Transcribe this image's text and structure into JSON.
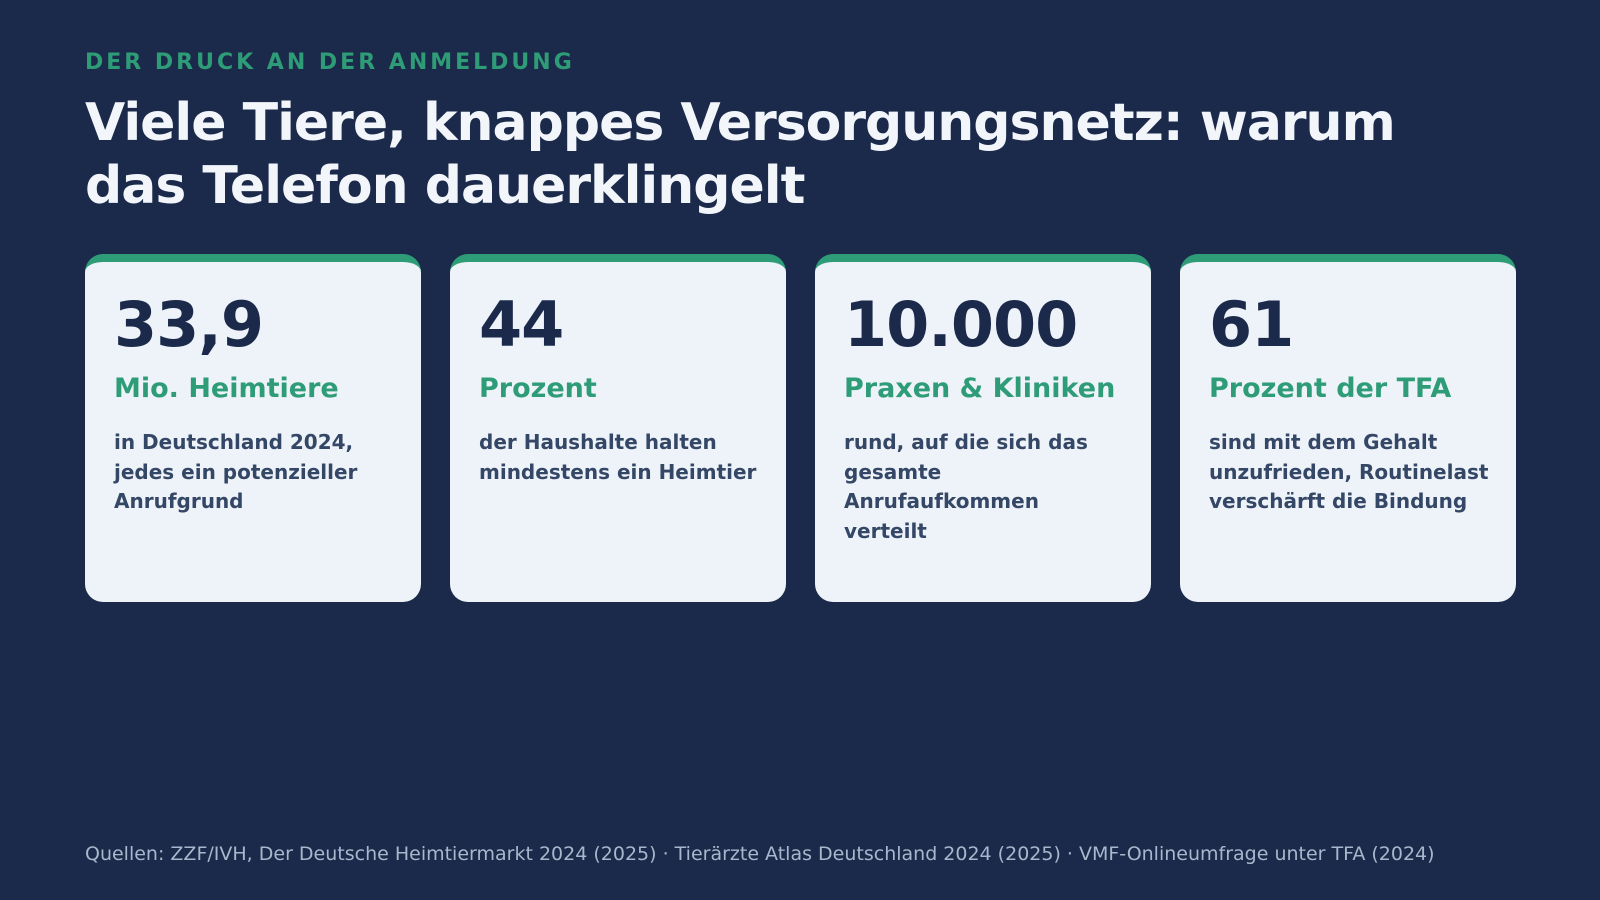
{
  "header": {
    "eyebrow": "DER DRUCK AN DER ANMELDUNG",
    "title": "Viele Tiere, knappes Versorgungsnetz: warum das Telefon dauerklingelt"
  },
  "stats": [
    {
      "value": "33,9",
      "unit": "Mio. Heimtiere",
      "description": "in Deutschland 2024, jedes ein potenzieller Anrufgrund"
    },
    {
      "value": "44",
      "unit": "Prozent",
      "description": "der Haushalte halten mindestens ein Heimtier"
    },
    {
      "value": "10.000",
      "unit": "Praxen & Kliniken",
      "description": "rund, auf die sich das gesamte Anrufaufkommen verteilt"
    },
    {
      "value": "61",
      "unit": "Prozent der TFA",
      "description": "sind mit dem Gehalt unzufrieden, Routinelast verschärft die Bindung"
    }
  ],
  "footer": {
    "sources": "Quellen: ZZF/IVH, Der Deutsche Heimtiermarkt 2024 (2025) · Tierärzte Atlas Deutschland 2024 (2025) · VMF-Onlineumfrage unter TFA (2024)"
  },
  "colors": {
    "background": "#1b2a4a",
    "accent": "#2f9c78",
    "card": "#eef3f9"
  }
}
